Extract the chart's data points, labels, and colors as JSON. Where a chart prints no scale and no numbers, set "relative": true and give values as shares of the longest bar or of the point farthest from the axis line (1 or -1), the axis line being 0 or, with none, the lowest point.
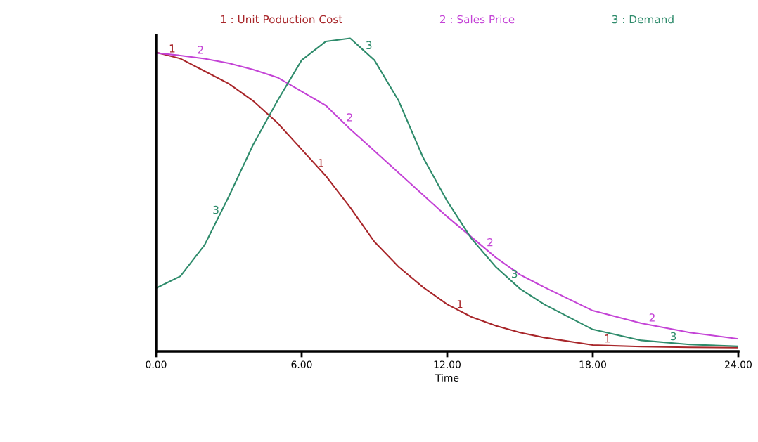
{
  "chart_data": {
    "type": "line",
    "relative": true,
    "xlabel": "Time",
    "legend": "top",
    "xlim": [
      0,
      24
    ],
    "xticks": [
      {
        "value": 0,
        "label": "0.00"
      },
      {
        "value": 6,
        "label": "6.00"
      },
      {
        "value": 12,
        "label": "12.00"
      },
      {
        "value": 18,
        "label": "18.00"
      },
      {
        "value": 24,
        "label": "24.00"
      }
    ],
    "x": [
      0,
      1,
      2,
      3,
      4,
      5,
      6,
      7,
      8,
      9,
      10,
      11,
      12,
      13,
      14,
      15,
      16,
      18,
      20,
      22,
      24
    ],
    "series": [
      {
        "name": "1 : Unit Poduction Cost",
        "color": "#a8262a",
        "values": [
          0.955,
          0.935,
          0.895,
          0.855,
          0.8,
          0.73,
          0.645,
          0.56,
          0.46,
          0.35,
          0.27,
          0.205,
          0.15,
          0.11,
          0.082,
          0.06,
          0.044,
          0.02,
          0.015,
          0.013,
          0.012
        ]
      },
      {
        "name": "2 : Sales Price",
        "color": "#c443d6",
        "values": [
          0.953,
          0.945,
          0.935,
          0.92,
          0.9,
          0.875,
          0.83,
          0.785,
          0.71,
          0.64,
          0.57,
          0.5,
          0.43,
          0.365,
          0.3,
          0.245,
          0.205,
          0.13,
          0.09,
          0.06,
          0.04
        ]
      },
      {
        "name": "3 : Demand",
        "color": "#2e8b6b",
        "values": [
          0.202,
          0.24,
          0.34,
          0.495,
          0.66,
          0.8,
          0.93,
          0.99,
          1,
          0.93,
          0.8,
          0.62,
          0.48,
          0.36,
          0.27,
          0.2,
          0.15,
          0.07,
          0.035,
          0.022,
          0.016
        ]
      }
    ],
    "annotations": [
      {
        "text": "1",
        "x": 0.6,
        "y": 0.945
      },
      {
        "text": "1",
        "x": 6.6,
        "y": 0.585
      },
      {
        "text": "1",
        "x": 12.4,
        "y": 0.13
      },
      {
        "text": "1",
        "x": 18.6,
        "y": 0.018
      },
      {
        "text": "2",
        "x": 1.8,
        "y": 0.94
      },
      {
        "text": "2",
        "x": 7.8,
        "y": 0.73
      },
      {
        "text": "2",
        "x": 13.6,
        "y": 0.33
      },
      {
        "text": "2",
        "x": 20.4,
        "y": 0.085
      },
      {
        "text": "3",
        "x": 2.7,
        "y": 0.44
      },
      {
        "text": "3",
        "x": 8.6,
        "y": 0.96
      },
      {
        "text": "3",
        "x": 14.6,
        "y": 0.23
      },
      {
        "text": "3",
        "x": 21.3,
        "y": 0.025
      }
    ]
  }
}
